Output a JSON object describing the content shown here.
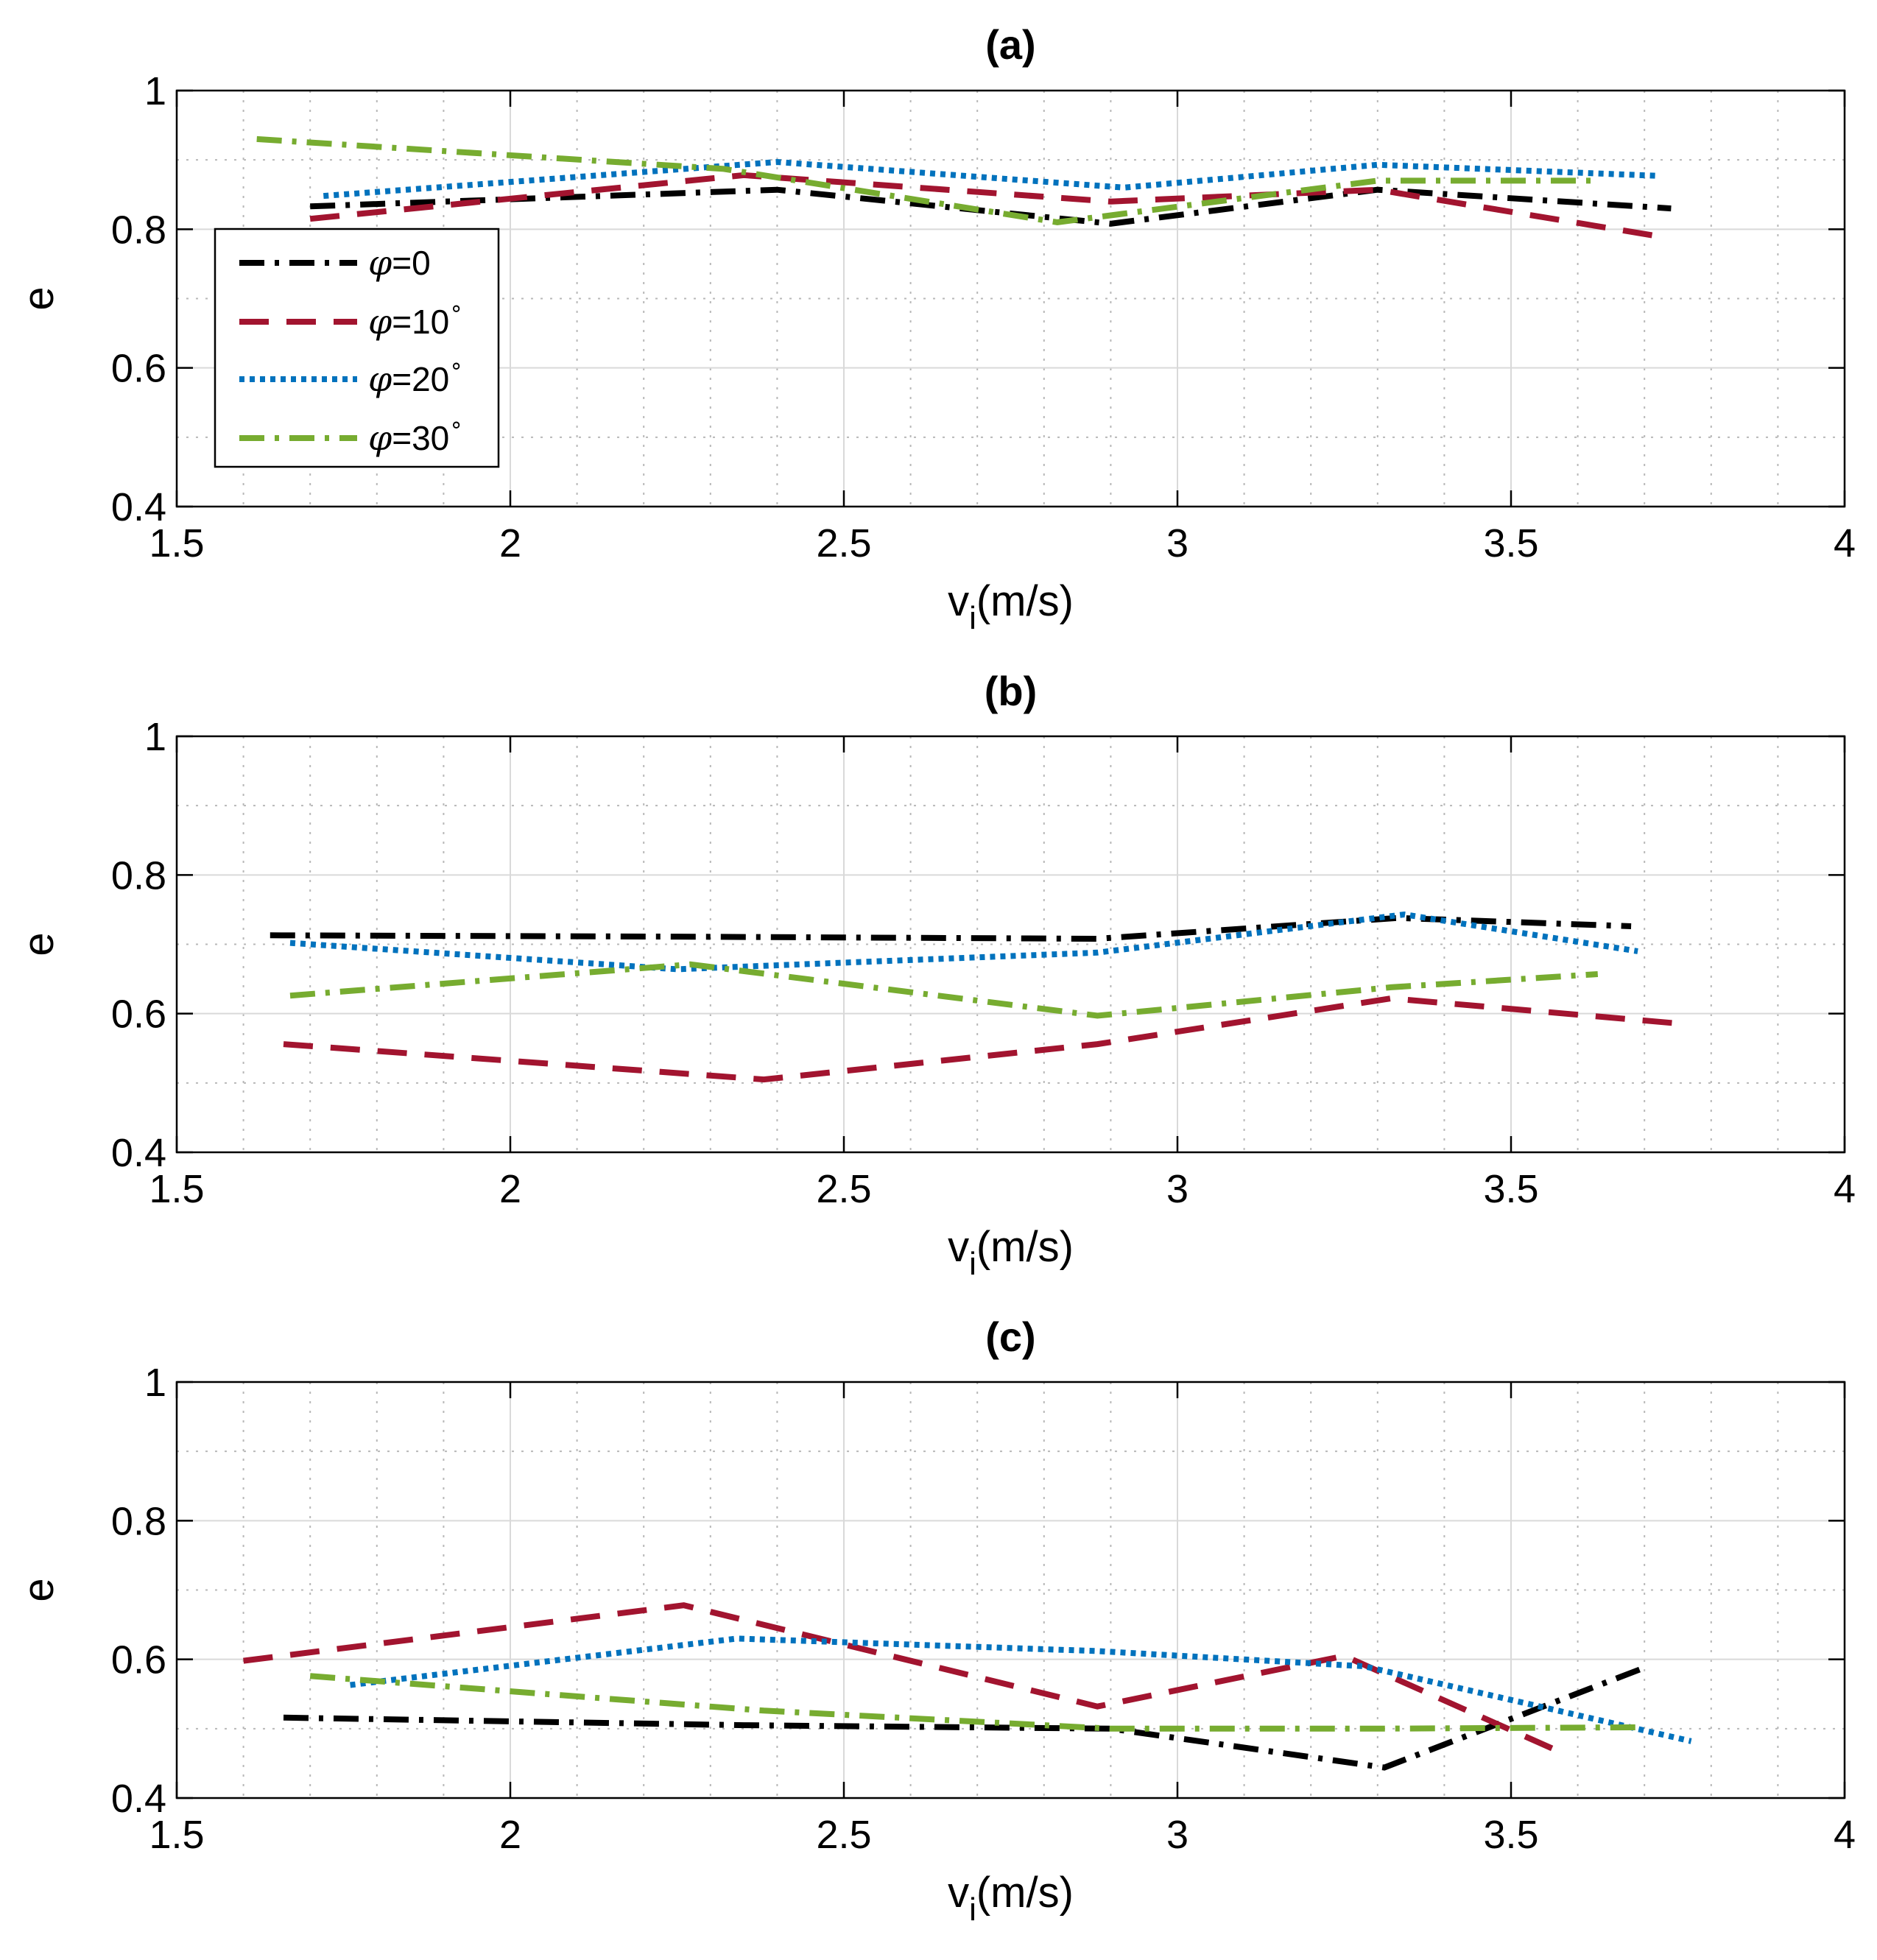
{
  "legend": {
    "entries": [
      {
        "sym": "φ",
        "rest": "=0",
        "sup": "",
        "color": "#000000",
        "dash": "dashdot"
      },
      {
        "sym": "φ",
        "rest": "=10",
        "sup": "∘",
        "color": "#a2142f",
        "dash": "dashed"
      },
      {
        "sym": "φ",
        "rest": "=20",
        "sup": "∘",
        "color": "#0072bd",
        "dash": "dotted"
      },
      {
        "sym": "φ",
        "rest": "=30",
        "sup": "∘",
        "color": "#77ac30",
        "dash": "dashdot"
      }
    ]
  },
  "chart_data": [
    {
      "type": "line",
      "title": "(a)",
      "xlabel": "v",
      "xlabel_sub": "i",
      "xlabel_rest": "(m/s)",
      "ylabel": "e",
      "xlim": [
        1.5,
        4
      ],
      "ylim": [
        0.4,
        1
      ],
      "xticks": [
        1.5,
        2,
        2.5,
        3,
        3.5,
        4
      ],
      "xtick_labels": [
        "1.5",
        "2",
        "2.5",
        "3",
        "3.5",
        "4"
      ],
      "yticks": [
        0.4,
        0.6,
        0.8,
        1
      ],
      "ytick_labels": [
        "0.4",
        "0.6",
        "0.8",
        "1"
      ],
      "series": [
        {
          "name": "φ=0",
          "x": [
            1.7,
            2.4,
            2.9,
            3.3,
            3.74
          ],
          "y": [
            0.833,
            0.857,
            0.808,
            0.857,
            0.83
          ]
        },
        {
          "name": "φ=10°",
          "x": [
            1.7,
            2.35,
            2.9,
            3.3,
            3.72
          ],
          "y": [
            0.815,
            0.878,
            0.84,
            0.857,
            0.79
          ]
        },
        {
          "name": "φ=20°",
          "x": [
            1.72,
            2.4,
            2.92,
            3.3,
            3.72
          ],
          "y": [
            0.848,
            0.897,
            0.86,
            0.893,
            0.877
          ]
        },
        {
          "name": "φ=30°",
          "x": [
            1.62,
            2.32,
            2.82,
            3.3,
            3.63
          ],
          "y": [
            0.93,
            0.887,
            0.81,
            0.87,
            0.87
          ]
        }
      ]
    },
    {
      "type": "line",
      "title": "(b)",
      "xlabel": "v",
      "xlabel_sub": "i",
      "xlabel_rest": "(m/s)",
      "ylabel": "e",
      "xlim": [
        1.5,
        4
      ],
      "ylim": [
        0.4,
        1
      ],
      "xticks": [
        1.5,
        2,
        2.5,
        3,
        3.5,
        4
      ],
      "xtick_labels": [
        "1.5",
        "2",
        "2.5",
        "3",
        "3.5",
        "4"
      ],
      "yticks": [
        0.4,
        0.6,
        0.8,
        1
      ],
      "ytick_labels": [
        "0.4",
        "0.6",
        "0.8",
        "1"
      ],
      "series": [
        {
          "name": "φ=0",
          "x": [
            1.64,
            2.25,
            2.88,
            3.33,
            3.68
          ],
          "y": [
            0.713,
            0.711,
            0.708,
            0.738,
            0.726
          ]
        },
        {
          "name": "φ=10°",
          "x": [
            1.66,
            2.38,
            2.88,
            3.32,
            3.76
          ],
          "y": [
            0.556,
            0.505,
            0.556,
            0.622,
            0.585
          ]
        },
        {
          "name": "φ=20°",
          "x": [
            1.67,
            2.25,
            2.88,
            3.34,
            3.69
          ],
          "y": [
            0.702,
            0.664,
            0.688,
            0.743,
            0.69
          ]
        },
        {
          "name": "φ=30°",
          "x": [
            1.67,
            2.27,
            2.88,
            3.32,
            3.63
          ],
          "y": [
            0.626,
            0.671,
            0.597,
            0.638,
            0.657
          ]
        }
      ]
    },
    {
      "type": "line",
      "title": "(c)",
      "xlabel": "v",
      "xlabel_sub": "i",
      "xlabel_rest": "(m/s)",
      "ylabel": "e",
      "xlim": [
        1.5,
        4
      ],
      "ylim": [
        0.4,
        1
      ],
      "xticks": [
        1.5,
        2,
        2.5,
        3,
        3.5,
        4
      ],
      "xtick_labels": [
        "1.5",
        "2",
        "2.5",
        "3",
        "3.5",
        "4"
      ],
      "yticks": [
        0.4,
        0.6,
        0.8,
        1
      ],
      "ytick_labels": [
        "0.4",
        "0.6",
        "0.8",
        "1"
      ],
      "series": [
        {
          "name": "φ=0",
          "x": [
            1.66,
            2.35,
            2.9,
            3.31,
            3.7
          ],
          "y": [
            0.516,
            0.505,
            0.5,
            0.444,
            0.588
          ]
        },
        {
          "name": "φ=10°",
          "x": [
            1.6,
            2.26,
            2.88,
            3.25,
            3.57
          ],
          "y": [
            0.598,
            0.678,
            0.532,
            0.605,
            0.468
          ]
        },
        {
          "name": "φ=20°",
          "x": [
            1.76,
            2.34,
            2.88,
            3.28,
            3.77
          ],
          "y": [
            0.563,
            0.63,
            0.612,
            0.59,
            0.482
          ]
        },
        {
          "name": "φ=30°",
          "x": [
            1.7,
            2.38,
            2.9,
            3.3,
            3.7
          ],
          "y": [
            0.576,
            0.526,
            0.5,
            0.5,
            0.502
          ]
        }
      ]
    }
  ]
}
